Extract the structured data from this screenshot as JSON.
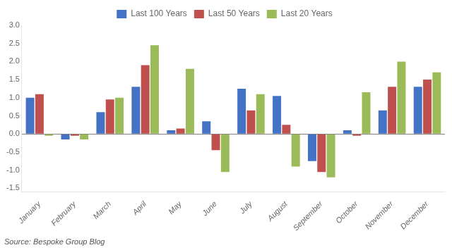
{
  "chart_data": {
    "type": "bar",
    "categories": [
      "January",
      "February",
      "March",
      "April",
      "May",
      "June",
      "July",
      "August",
      "September",
      "October",
      "November",
      "December"
    ],
    "series": [
      {
        "name": "Last 100 Years",
        "color": "#4472C4",
        "values": [
          1.0,
          -0.15,
          0.6,
          1.3,
          0.1,
          0.35,
          1.25,
          1.05,
          -0.75,
          0.1,
          0.65,
          1.3
        ]
      },
      {
        "name": "Last 50 Years",
        "color": "#C0504D",
        "values": [
          1.1,
          -0.05,
          0.95,
          1.9,
          0.15,
          -0.45,
          0.65,
          0.25,
          -1.05,
          -0.05,
          1.3,
          1.5
        ]
      },
      {
        "name": "Last 20 Years",
        "color": "#9BBB59",
        "values": [
          -0.05,
          -0.15,
          1.0,
          2.45,
          1.8,
          -1.05,
          1.1,
          -0.9,
          -1.2,
          1.15,
          2.0,
          1.7
        ]
      }
    ],
    "ylim": [
      -1.6,
      3.0
    ],
    "yticks": [
      -1.5,
      {
        "value": -1.0,
        "label": "-1.0"
      },
      -0.5,
      {
        "value": 0.0,
        "label": "0.0"
      },
      0.5,
      {
        "value": 1.0,
        "label": "1.0"
      },
      1.5,
      {
        "value": 2.0,
        "label": "2.0"
      },
      2.5,
      {
        "value": 3.0,
        "label": "3.0"
      }
    ],
    "grid": false,
    "legend": "top",
    "annotations": [
      {
        "text": "Source: Bespoke Group Blog"
      }
    ]
  }
}
